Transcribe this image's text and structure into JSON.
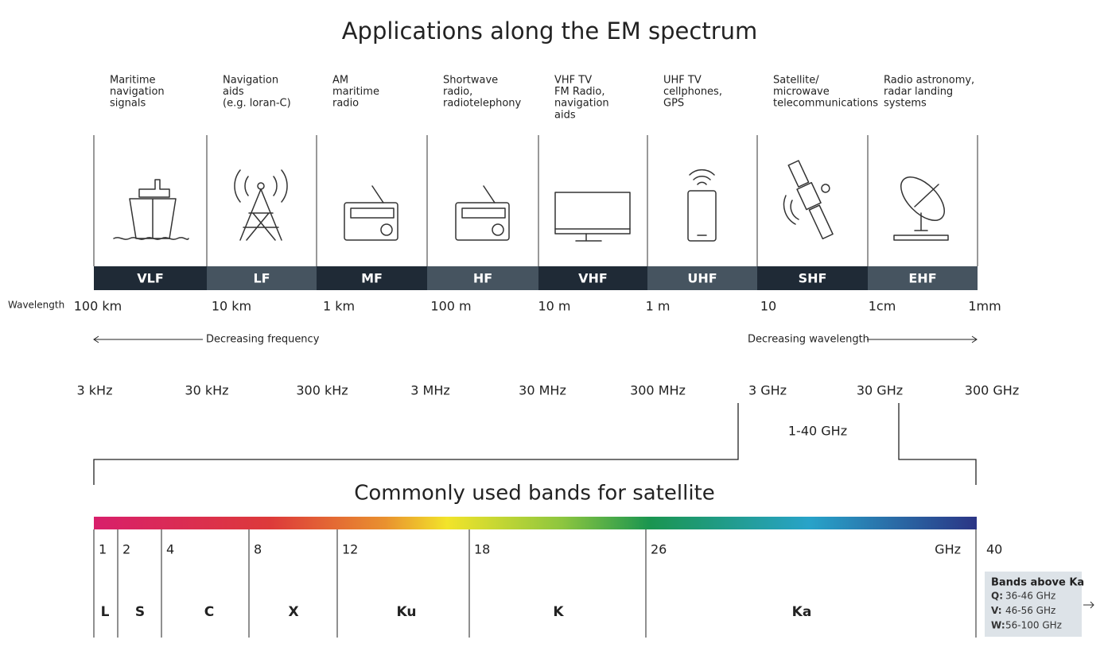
{
  "title": "Applications along the EM spectrum",
  "bands": [
    {
      "application": [
        "Maritime",
        "navigation",
        "signals"
      ],
      "name": "VLF"
    },
    {
      "application": [
        "Navigation",
        "aids",
        "(e.g. loran-C)"
      ],
      "name": "LF"
    },
    {
      "application": [
        "AM",
        "maritime",
        "radio"
      ],
      "name": "MF"
    },
    {
      "application": [
        "Shortwave",
        "radio,",
        "radiotelephony"
      ],
      "name": "HF"
    },
    {
      "application": [
        "VHF TV",
        "FM Radio,",
        "navigation",
        "aids"
      ],
      "name": "VHF"
    },
    {
      "application": [
        "UHF TV",
        "cellphones,",
        "GPS"
      ],
      "name": "UHF"
    },
    {
      "application": [
        "Satellite/",
        "microwave",
        "telecommunications"
      ],
      "name": "SHF"
    },
    {
      "application": [
        "Radio astronomy,",
        "radar landing",
        "systems"
      ],
      "name": "EHF"
    }
  ],
  "wavelength_label": "Wavelength",
  "wavelengths": [
    "100 km",
    "10 km",
    "1 km",
    "100 m",
    "10 m",
    "1 m",
    "10",
    "1cm",
    "1mm"
  ],
  "decreasing_frequency": "Decreasing frequency",
  "decreasing_wavelength": "Decreasing wavelength",
  "frequencies": [
    "3 kHz",
    "30 kHz",
    "300 kHz",
    "3 MHz",
    "30 MHz",
    "300 MHz",
    "3 GHz",
    "30 GHz",
    "300 GHz"
  ],
  "satellite_range": "1-40 GHz",
  "satellite_title": "Commonly used bands for satellite",
  "satellite_ticks": [
    "1",
    "2",
    "4",
    "8",
    "12",
    "18",
    "26"
  ],
  "satellite_unit": "GHz",
  "satellite_end": "40",
  "satellite_bands": [
    "L",
    "S",
    "C",
    "X",
    "Ku",
    "K",
    "Ka"
  ],
  "bands_above": {
    "title": "Bands above Ka",
    "items": [
      {
        "band": "Q:",
        "range": "36-46 GHz"
      },
      {
        "band": "V:",
        "range": "46-56 GHz"
      },
      {
        "band": "W:",
        "range": "56-100 GHz"
      }
    ]
  }
}
